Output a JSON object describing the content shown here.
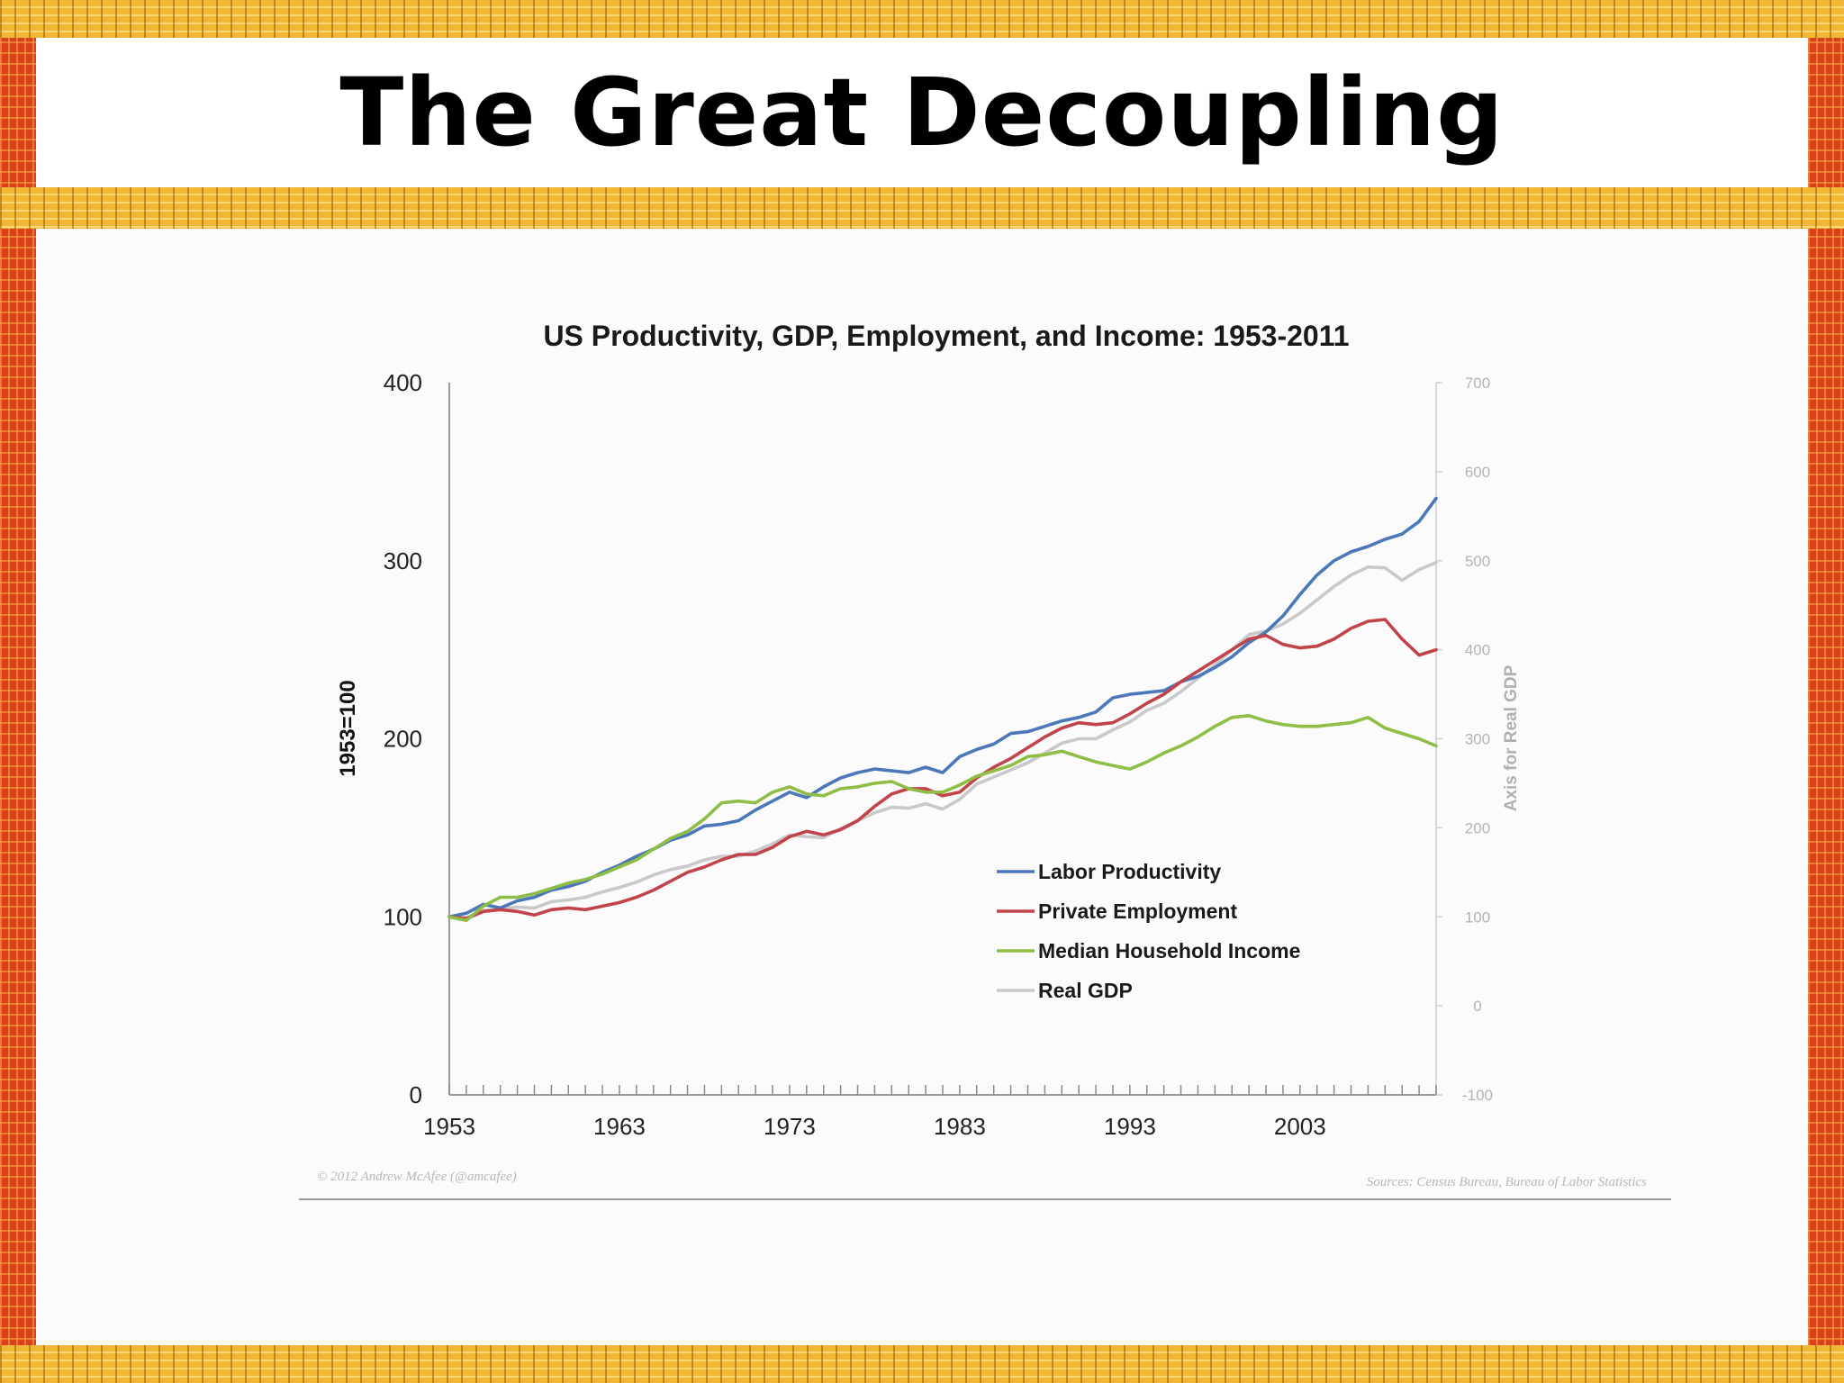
{
  "slide": {
    "title": "The Great Decoupling"
  },
  "chart_data": {
    "type": "line",
    "title": "US Productivity, GDP, Employment, and Income: 1953-2011",
    "ylabel": "1953=100",
    "y2label": "Axis for Real GDP",
    "ylim": [
      0,
      400
    ],
    "y2lim": [
      -100,
      700
    ],
    "yticks": [
      "0",
      "100",
      "200",
      "300",
      "400"
    ],
    "y2ticks": [
      "-100",
      "0",
      "100",
      "200",
      "300",
      "400",
      "500",
      "600",
      "700"
    ],
    "xlim": [
      1953,
      2011
    ],
    "xticks": [
      "1953",
      "1963",
      "1973",
      "1983",
      "1993",
      "2003"
    ],
    "grid": false,
    "legend_position": "lower-right",
    "copyright": "© 2012 Andrew McAfee (@amcafee)",
    "sources": "Sources: Census Bureau, Bureau of Labor Statistics",
    "x": [
      1953,
      1954,
      1955,
      1956,
      1957,
      1958,
      1959,
      1960,
      1961,
      1962,
      1963,
      1964,
      1965,
      1966,
      1967,
      1968,
      1969,
      1970,
      1971,
      1972,
      1973,
      1974,
      1975,
      1976,
      1977,
      1978,
      1979,
      1980,
      1981,
      1982,
      1983,
      1984,
      1985,
      1986,
      1987,
      1988,
      1989,
      1990,
      1991,
      1992,
      1993,
      1994,
      1995,
      1996,
      1997,
      1998,
      1999,
      2000,
      2001,
      2002,
      2003,
      2004,
      2005,
      2006,
      2007,
      2008,
      2009,
      2010,
      2011
    ],
    "series": [
      {
        "name": "Labor Productivity",
        "color": "#4a78b9",
        "axis": "left",
        "values": [
          100,
          102,
          107,
          105,
          109,
          111,
          115,
          117,
          120,
          125,
          129,
          134,
          138,
          143,
          146,
          151,
          152,
          154,
          160,
          165,
          170,
          167,
          173,
          178,
          181,
          183,
          182,
          181,
          184,
          181,
          190,
          194,
          197,
          203,
          204,
          207,
          210,
          212,
          215,
          223,
          225,
          226,
          227,
          232,
          235,
          240,
          246,
          254,
          260,
          269,
          281,
          292,
          300,
          305,
          308,
          312,
          315,
          322,
          335
        ]
      },
      {
        "name": "Private Employment",
        "color": "#c1444a",
        "axis": "left",
        "values": [
          100,
          99,
          103,
          104,
          103,
          101,
          104,
          105,
          104,
          106,
          108,
          111,
          115,
          120,
          125,
          128,
          132,
          135,
          135,
          139,
          145,
          148,
          146,
          149,
          154,
          162,
          169,
          172,
          172,
          168,
          170,
          178,
          184,
          189,
          195,
          201,
          206,
          209,
          208,
          209,
          214,
          220,
          225,
          232,
          238,
          244,
          250,
          256,
          258,
          253,
          251,
          252,
          256,
          262,
          266,
          267,
          256,
          247,
          250
        ]
      },
      {
        "name": "Median Household Income",
        "color": "#8fbd45",
        "axis": "left",
        "values": [
          100,
          98,
          106,
          111,
          111,
          113,
          116,
          119,
          121,
          124,
          128,
          132,
          138,
          144,
          148,
          155,
          164,
          165,
          164,
          170,
          173,
          169,
          168,
          172,
          173,
          175,
          176,
          172,
          170,
          170,
          174,
          179,
          182,
          185,
          190,
          191,
          193,
          190,
          187,
          185,
          183,
          187,
          192,
          196,
          201,
          207,
          212,
          213,
          210,
          208,
          207,
          207,
          208,
          209,
          212,
          206,
          203,
          200,
          196
        ]
      },
      {
        "name": "Real GDP",
        "color": "#c9c9c9",
        "axis": "right",
        "values": [
          100,
          99,
          107,
          109,
          111,
          110,
          117,
          119,
          122,
          128,
          133,
          139,
          147,
          153,
          157,
          164,
          168,
          168,
          174,
          182,
          192,
          190,
          189,
          199,
          208,
          217,
          223,
          222,
          227,
          221,
          232,
          249,
          257,
          265,
          273,
          284,
          295,
          300,
          300,
          310,
          319,
          332,
          340,
          353,
          368,
          383,
          400,
          417,
          421,
          429,
          441,
          456,
          471,
          484,
          493,
          492,
          478,
          490,
          498
        ]
      }
    ]
  }
}
